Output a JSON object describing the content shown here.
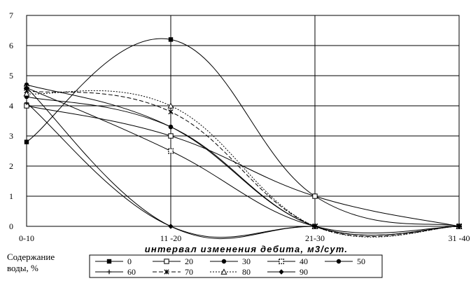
{
  "chart_data": {
    "type": "line",
    "title": "",
    "xlabel": "интервал изменения дебита, м3/сут.",
    "ylabel": "",
    "categories": [
      "0-10",
      "11 -20",
      "21-30",
      "31 -40"
    ],
    "ylim": [
      0,
      7
    ],
    "yticks": [
      0,
      1,
      2,
      3,
      4,
      5,
      6,
      7
    ],
    "grid": true,
    "legend": {
      "title_line1": "Содержание",
      "title_line2": "воды, %",
      "placement": "bottom"
    },
    "series": [
      {
        "name": "0",
        "values": [
          2.8,
          6.2,
          1.0,
          0
        ],
        "marker": "square-filled",
        "dash": "solid"
      },
      {
        "name": "20",
        "values": [
          4.0,
          3.0,
          1.0,
          0
        ],
        "marker": "square-open",
        "dash": "solid"
      },
      {
        "name": "30",
        "values": [
          4.7,
          3.3,
          0,
          0
        ],
        "marker": "circle-filled",
        "dash": "solid"
      },
      {
        "name": "40",
        "values": [
          4.6,
          2.5,
          0,
          0
        ],
        "marker": "square-dotted",
        "dash": "solid"
      },
      {
        "name": "50",
        "values": [
          4.3,
          3.3,
          0,
          0
        ],
        "marker": "circle-filled",
        "dash": "solid"
      },
      {
        "name": "60",
        "values": [
          4.1,
          0,
          0,
          0
        ],
        "marker": "plus",
        "dash": "solid"
      },
      {
        "name": "70",
        "values": [
          4.5,
          3.8,
          0,
          0
        ],
        "marker": "asterisk",
        "dash": "dashed"
      },
      {
        "name": "80",
        "values": [
          4.4,
          4.0,
          0,
          0
        ],
        "marker": "triangle-open",
        "dash": "dotted"
      },
      {
        "name": "90",
        "values": [
          4.6,
          0,
          0,
          0
        ],
        "marker": "diamond-filled",
        "dash": "solid"
      }
    ]
  }
}
